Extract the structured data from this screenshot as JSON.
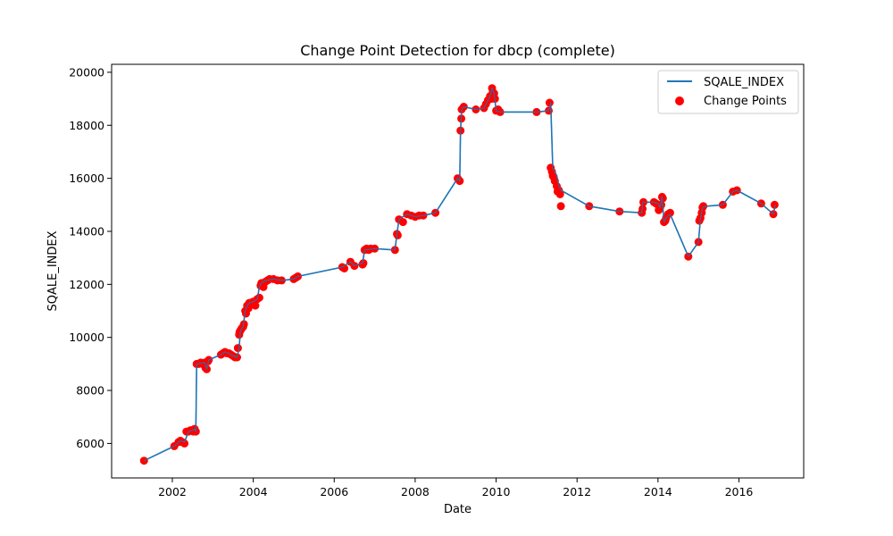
{
  "chart_data": {
    "type": "line",
    "title": "Change Point Detection for dbcp (complete)",
    "xlabel": "Date",
    "ylabel": "SQALE_INDEX",
    "xlim": [
      2000.5,
      2017.6
    ],
    "ylim": [
      4700,
      20300
    ],
    "x_ticks": [
      2002,
      2004,
      2006,
      2008,
      2010,
      2012,
      2014,
      2016
    ],
    "y_ticks": [
      6000,
      8000,
      10000,
      12000,
      14000,
      16000,
      18000,
      20000
    ],
    "legend_position": "top-right",
    "grid": false,
    "colors": {
      "line": "#1f77b4",
      "points": "#ff0000"
    },
    "series": [
      {
        "name": "SQALE_INDEX",
        "x": [
          2001.3,
          2002.05,
          2002.2,
          2002.3,
          2002.4,
          2002.5,
          2002.55,
          2002.58,
          2002.6,
          2002.8,
          2002.85,
          2002.9,
          2003.2,
          2003.3,
          2003.4,
          2003.5,
          2003.6,
          2003.65,
          2003.68,
          2003.7,
          2003.75,
          2003.8,
          2003.85,
          2003.9,
          2004.0,
          2004.1,
          2004.15,
          2004.2,
          2004.3,
          2004.5,
          2004.7,
          2005.0,
          2005.1,
          2006.2,
          2006.4,
          2006.5,
          2006.7,
          2006.75,
          2007.0,
          2007.5,
          2007.55,
          2007.6,
          2007.8,
          2008.0,
          2008.2,
          2008.5,
          2009.05,
          2009.1,
          2009.12,
          2009.15,
          2009.2,
          2009.5,
          2009.7,
          2009.85,
          2009.9,
          2009.95,
          2010.0,
          2010.1,
          2011.0,
          2011.3,
          2011.35,
          2011.4,
          2011.5,
          2011.55,
          2011.6,
          2012.3,
          2013.05,
          2013.6,
          2013.62,
          2013.9,
          2014.0,
          2014.05,
          2014.1,
          2014.15,
          2014.2,
          2014.3,
          2014.75,
          2015.0,
          2015.05,
          2015.1,
          2015.2,
          2015.6,
          2015.85,
          2015.95,
          2016.55,
          2016.85,
          2016.9
        ],
        "values": [
          5350,
          5900,
          6100,
          6050,
          6450,
          6500,
          6550,
          6450,
          9000,
          9050,
          8800,
          9150,
          9350,
          9450,
          9400,
          9300,
          9250,
          9600,
          10200,
          10300,
          10400,
          11000,
          11200,
          11300,
          11350,
          11450,
          11900,
          12050,
          12150,
          12200,
          12150,
          12200,
          12300,
          12650,
          12850,
          12700,
          12800,
          13300,
          13350,
          13300,
          13900,
          14450,
          14650,
          14550,
          14600,
          14700,
          16000,
          15900,
          17800,
          18600,
          18700,
          18600,
          18650,
          19100,
          19400,
          19200,
          18550,
          18500,
          18500,
          18550,
          18850,
          16400,
          16100,
          15700,
          15550,
          14950,
          14750,
          14700,
          15100,
          15100,
          15050,
          14900,
          15300,
          14350,
          14500,
          14650,
          13050,
          13600,
          14500,
          14900,
          14950,
          15000,
          15500,
          15550,
          15050,
          14650,
          15000
        ]
      },
      {
        "name": "Change Points",
        "x": [
          2001.3,
          2002.05,
          2002.15,
          2002.2,
          2002.25,
          2002.3,
          2002.35,
          2002.4,
          2002.45,
          2002.5,
          2002.52,
          2002.55,
          2002.58,
          2002.6,
          2002.65,
          2002.7,
          2002.75,
          2002.8,
          2002.82,
          2002.85,
          2002.88,
          2002.9,
          2003.2,
          2003.25,
          2003.3,
          2003.35,
          2003.4,
          2003.45,
          2003.5,
          2003.55,
          2003.6,
          2003.62,
          2003.65,
          2003.66,
          2003.68,
          2003.7,
          2003.72,
          2003.75,
          2003.77,
          2003.8,
          2003.82,
          2003.85,
          2003.88,
          2003.9,
          2003.95,
          2004.0,
          2004.05,
          2004.1,
          2004.15,
          2004.18,
          2004.2,
          2004.25,
          2004.3,
          2004.35,
          2004.4,
          2004.5,
          2004.6,
          2004.7,
          2005.0,
          2005.05,
          2005.1,
          2006.2,
          2006.25,
          2006.4,
          2006.5,
          2006.7,
          2006.72,
          2006.75,
          2006.8,
          2006.85,
          2006.9,
          2007.0,
          2007.5,
          2007.55,
          2007.57,
          2007.6,
          2007.7,
          2007.8,
          2007.9,
          2008.0,
          2008.1,
          2008.2,
          2008.5,
          2009.05,
          2009.1,
          2009.12,
          2009.14,
          2009.15,
          2009.2,
          2009.5,
          2009.7,
          2009.75,
          2009.8,
          2009.85,
          2009.88,
          2009.9,
          2009.92,
          2009.95,
          2009.97,
          2010.0,
          2010.05,
          2010.1,
          2011.0,
          2011.3,
          2011.32,
          2011.35,
          2011.38,
          2011.4,
          2011.42,
          2011.45,
          2011.5,
          2011.52,
          2011.55,
          2011.58,
          2011.6,
          2012.3,
          2013.05,
          2013.6,
          2013.62,
          2013.64,
          2013.9,
          2013.95,
          2014.0,
          2014.02,
          2014.05,
          2014.08,
          2014.1,
          2014.12,
          2014.15,
          2014.18,
          2014.2,
          2014.25,
          2014.3,
          2014.75,
          2015.0,
          2015.02,
          2015.05,
          2015.08,
          2015.1,
          2015.12,
          2015.6,
          2015.85,
          2015.95,
          2016.55,
          2016.85,
          2016.88
        ],
        "values": [
          5350,
          5900,
          6050,
          6100,
          6050,
          6000,
          6450,
          6450,
          6500,
          6500,
          6450,
          6550,
          6450,
          9000,
          9000,
          9050,
          9000,
          9050,
          8850,
          8800,
          9100,
          9150,
          9350,
          9400,
          9450,
          9400,
          9400,
          9350,
          9300,
          9250,
          9250,
          9600,
          10100,
          10200,
          10250,
          10300,
          10350,
          10400,
          10500,
          11000,
          10900,
          11200,
          11100,
          11300,
          11300,
          11350,
          11200,
          11450,
          11500,
          11950,
          12050,
          11900,
          12100,
          12150,
          12200,
          12200,
          12150,
          12150,
          12200,
          12250,
          12300,
          12650,
          12600,
          12850,
          12700,
          12750,
          12800,
          13300,
          13350,
          13300,
          13350,
          13350,
          13300,
          13900,
          13850,
          14450,
          14350,
          14650,
          14600,
          14550,
          14600,
          14600,
          14700,
          16000,
          15900,
          17800,
          18250,
          18600,
          18700,
          18600,
          18650,
          18800,
          18950,
          19100,
          19000,
          19400,
          19250,
          19200,
          19000,
          18550,
          18600,
          18500,
          18500,
          18550,
          18850,
          16400,
          16250,
          16100,
          16050,
          15900,
          15700,
          15500,
          15550,
          15400,
          14950,
          14950,
          14750,
          14700,
          14850,
          15100,
          15100,
          15050,
          15000,
          14800,
          14900,
          15000,
          15300,
          15250,
          14350,
          14400,
          14500,
          14650,
          14700,
          13050,
          13600,
          14400,
          14500,
          14700,
          14900,
          14950,
          15000,
          15500,
          15550,
          15050,
          14650,
          15000
        ]
      }
    ]
  }
}
